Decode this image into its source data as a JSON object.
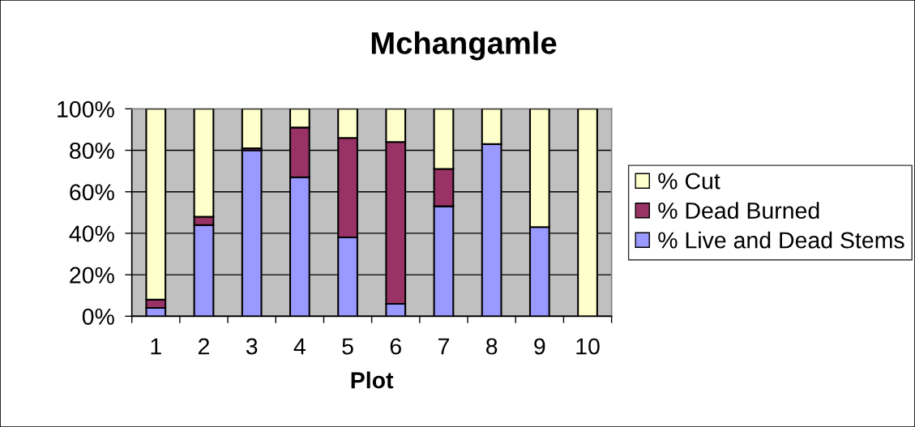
{
  "chart_data": {
    "type": "bar",
    "title": "Mchangamle",
    "xlabel": "Plot",
    "categories": [
      "1",
      "2",
      "3",
      "4",
      "5",
      "6",
      "7",
      "8",
      "9",
      "10"
    ],
    "stacked": true,
    "series": [
      {
        "name": "% Live and Dead Stems",
        "color": "#9999ff",
        "values": [
          4,
          44,
          80,
          67,
          38,
          6,
          53,
          83,
          43,
          0
        ]
      },
      {
        "name": "% Dead Burned",
        "color": "#993366",
        "values": [
          4,
          4,
          1,
          24,
          48,
          78,
          18,
          0,
          0,
          0
        ]
      },
      {
        "name": "% Cut",
        "color": "#ffffcc",
        "values": [
          92,
          52,
          19,
          9,
          14,
          16,
          29,
          17,
          57,
          100
        ]
      }
    ],
    "ylim": [
      0,
      100
    ],
    "yticks": [
      {
        "value": 0,
        "label": "0%"
      },
      {
        "value": 20,
        "label": "20%"
      },
      {
        "value": 40,
        "label": "40%"
      },
      {
        "value": 60,
        "label": "60%"
      },
      {
        "value": 80,
        "label": "80%"
      },
      {
        "value": 100,
        "label": "100%"
      }
    ],
    "grid": "y",
    "legend": "right"
  }
}
